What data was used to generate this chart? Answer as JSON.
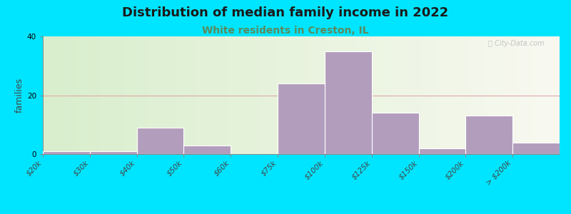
{
  "title": "Distribution of median family income in 2022",
  "subtitle": "White residents in Creston, IL",
  "ylabel": "families",
  "categories": [
    "$20k",
    "$30k",
    "$40k",
    "$50k",
    "$60k",
    "$75k",
    "$100k",
    "$125k",
    "$150k",
    "$200k",
    "> $200k"
  ],
  "values": [
    1,
    1,
    9,
    3,
    0,
    24,
    35,
    14,
    2,
    13,
    4
  ],
  "bar_color": "#b39dbd",
  "bg_outer": "#00e5ff",
  "ylim": [
    0,
    40
  ],
  "yticks": [
    0,
    20,
    40
  ],
  "title_fontsize": 13,
  "subtitle_fontsize": 10,
  "subtitle_color": "#5c8a5c",
  "ylabel_fontsize": 9,
  "tick_fontsize": 7.5,
  "watermark": "City-Data.com",
  "grid_color": "#ddaaaa",
  "grid_linewidth": 0.8
}
